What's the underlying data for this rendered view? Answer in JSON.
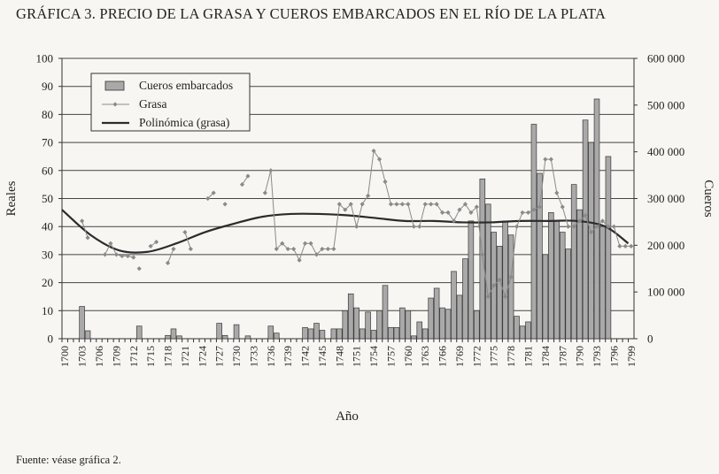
{
  "chart_data": {
    "type": "bar+line",
    "title": "GRÁFICA 3. PRECIO DE LA GRASA Y CUEROS EMBARCADOS EN EL RÍO DE LA PLATA",
    "source": "Fuente: véase gráfica 2.",
    "xlabel": "Año",
    "ylabel_left": "Reales",
    "ylabel_right": "Cueros",
    "x_range": [
      1700,
      1799
    ],
    "x_tick_step": 3,
    "ylim_left": [
      0,
      100
    ],
    "ylim_right": [
      0,
      600000
    ],
    "yticks_left": [
      "0",
      "10",
      "20",
      "30",
      "40",
      "50",
      "60",
      "70",
      "80",
      "90",
      "100"
    ],
    "yticks_right": [
      "0",
      "100 000",
      "200 000",
      "300 000",
      "400 000",
      "500 000",
      "600 000"
    ],
    "grid": true,
    "legend": {
      "placement": "top-left",
      "entries": [
        "Cueros embarcados",
        "Grasa",
        "Polinómica (grasa)"
      ]
    },
    "colors": {
      "bars": "#a9a9a9",
      "grasa": "#8a8a8a",
      "trend": "#2b2b2b"
    },
    "cueros": {
      "axis": "right",
      "years": [
        1703,
        1704,
        1713,
        1718,
        1719,
        1720,
        1727,
        1728,
        1730,
        1732,
        1736,
        1737,
        1742,
        1743,
        1744,
        1745,
        1747,
        1748,
        1749,
        1750,
        1751,
        1752,
        1753,
        1754,
        1755,
        1756,
        1757,
        1758,
        1759,
        1760,
        1761,
        1762,
        1763,
        1764,
        1765,
        1766,
        1767,
        1768,
        1769,
        1770,
        1771,
        1772,
        1773,
        1774,
        1775,
        1776,
        1777,
        1778,
        1779,
        1780,
        1781,
        1782,
        1783,
        1784,
        1785,
        1786,
        1787,
        1788,
        1789,
        1790,
        1791,
        1792,
        1793,
        1794,
        1795
      ],
      "values": [
        69000,
        17000,
        27000,
        7000,
        21000,
        6000,
        33000,
        7000,
        30000,
        6000,
        27000,
        12000,
        24000,
        21000,
        33000,
        18000,
        21000,
        21000,
        60000,
        96000,
        66000,
        21000,
        57000,
        18000,
        60000,
        114000,
        24000,
        24000,
        66000,
        60000,
        6000,
        36000,
        21000,
        87000,
        108000,
        66000,
        63000,
        144000,
        93000,
        171000,
        252000,
        60000,
        342000,
        288000,
        228000,
        198000,
        252000,
        222000,
        48000,
        27000,
        36000,
        459000,
        354000,
        180000,
        270000,
        252000,
        228000,
        192000,
        330000,
        276000,
        468000,
        420000,
        513000,
        240000,
        390000
      ]
    },
    "grasa": {
      "axis": "left",
      "segments": [
        {
          "years": [
            1703,
            1704
          ],
          "values": [
            42,
            36
          ]
        },
        {
          "years": [
            1707,
            1708,
            1709,
            1710,
            1711,
            1712
          ],
          "values": [
            30,
            34,
            30,
            29.5,
            29.5,
            29
          ]
        },
        {
          "years": [
            1713
          ],
          "values": [
            25
          ]
        },
        {
          "years": [
            1715,
            1716
          ],
          "values": [
            33,
            34.5
          ]
        },
        {
          "years": [
            1718,
            1719
          ],
          "values": [
            27,
            32
          ]
        },
        {
          "years": [
            1721,
            1722
          ],
          "values": [
            38,
            32
          ]
        },
        {
          "years": [
            1725,
            1726
          ],
          "values": [
            50,
            52
          ]
        },
        {
          "years": [
            1728
          ],
          "values": [
            48
          ]
        },
        {
          "years": [
            1731,
            1732
          ],
          "values": [
            55,
            58
          ]
        },
        {
          "years": [
            1735,
            1736,
            1737,
            1738,
            1739,
            1740,
            1741,
            1742,
            1743,
            1744,
            1745,
            1746,
            1747,
            1748,
            1749,
            1750,
            1751,
            1752,
            1753,
            1754,
            1755,
            1756,
            1757,
            1758,
            1759,
            1760,
            1761,
            1762,
            1763,
            1764,
            1765,
            1766,
            1767,
            1768,
            1769,
            1770,
            1771,
            1772,
            1773,
            1774,
            1775,
            1776,
            1777,
            1778,
            1779,
            1780,
            1781,
            1782,
            1783,
            1784,
            1785,
            1786,
            1787,
            1788,
            1789,
            1790,
            1791,
            1792,
            1793,
            1794,
            1795,
            1796,
            1797,
            1798,
            1799
          ],
          "values": [
            52,
            60,
            32,
            34,
            32,
            32,
            28,
            34,
            34,
            30,
            32,
            32,
            32,
            48,
            46,
            48,
            40,
            48,
            51,
            67,
            64,
            56,
            48,
            48,
            48,
            48,
            40,
            40,
            48,
            48,
            48,
            45,
            45,
            42,
            46,
            48,
            45,
            47,
            30,
            15,
            19,
            21,
            15,
            22,
            40,
            45,
            45,
            46,
            47,
            64,
            64,
            52,
            47,
            40,
            40,
            42,
            44,
            38,
            40,
            42,
            40,
            40,
            33,
            33,
            33
          ]
        }
      ]
    },
    "polinomica": {
      "axis": "left",
      "years": [
        1700,
        1705,
        1710,
        1715,
        1720,
        1725,
        1730,
        1735,
        1740,
        1745,
        1750,
        1755,
        1760,
        1765,
        1770,
        1775,
        1780,
        1785,
        1790,
        1795,
        1799
      ],
      "values": [
        46,
        37,
        31.5,
        31,
        34,
        38,
        41,
        43.5,
        44.5,
        44.5,
        44,
        43,
        42,
        42,
        41.5,
        41.5,
        42,
        42,
        42,
        40,
        34
      ]
    }
  }
}
